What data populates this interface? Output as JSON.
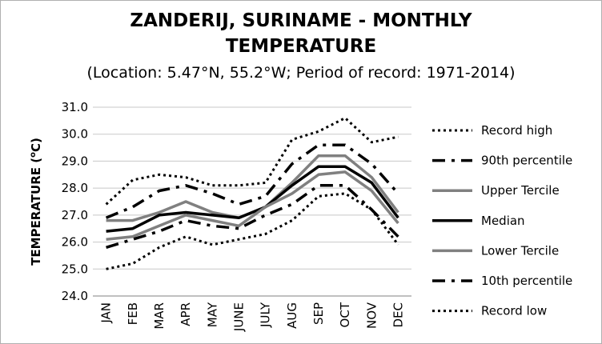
{
  "chart_data": {
    "type": "line",
    "title_line1": "ZANDERIJ, SURINAME - MONTHLY",
    "title_line2": "TEMPERATURE",
    "subtitle": "(Location: 5.47°N, 55.2°W; Period of record: 1971-2014)",
    "ylabel_main": "TEMPERATURE (",
    "ylabel_sup": "o",
    "ylabel_end": "C)",
    "ylim": [
      24.0,
      31.0
    ],
    "yticks": [
      "24.0",
      "25.0",
      "26.0",
      "27.0",
      "28.0",
      "29.0",
      "30.0",
      "31.0"
    ],
    "categories": [
      "JAN",
      "FEB",
      "MAR",
      "APR",
      "MAY",
      "JUNE",
      "JULY",
      "AUG",
      "SEP",
      "OCT",
      "NOV",
      "DEC"
    ],
    "grid": "horizontal",
    "legend_position": "right",
    "series": [
      {
        "name": "Record high",
        "style": "dotted",
        "color": "#000000",
        "values": [
          27.4,
          28.3,
          28.5,
          28.4,
          28.1,
          28.1,
          28.2,
          29.8,
          30.1,
          30.6,
          29.7,
          29.9
        ]
      },
      {
        "name": "90th percentile",
        "style": "dashdot",
        "color": "#000000",
        "values": [
          26.9,
          27.3,
          27.9,
          28.1,
          27.8,
          27.4,
          27.7,
          28.9,
          29.6,
          29.6,
          28.9,
          27.8
        ]
      },
      {
        "name": "Upper Tercile",
        "style": "solid",
        "color": "#808080",
        "values": [
          26.8,
          26.8,
          27.1,
          27.5,
          27.1,
          26.9,
          27.3,
          28.2,
          29.2,
          29.2,
          28.4,
          27.1
        ]
      },
      {
        "name": "Median",
        "style": "solid",
        "color": "#000000",
        "values": [
          26.4,
          26.5,
          27.0,
          27.1,
          27.0,
          26.9,
          27.3,
          28.1,
          28.8,
          28.8,
          28.2,
          26.9
        ]
      },
      {
        "name": "Lower Tercile",
        "style": "solid",
        "color": "#808080",
        "values": [
          26.1,
          26.2,
          26.6,
          27.0,
          26.8,
          26.6,
          27.3,
          27.8,
          28.5,
          28.6,
          27.9,
          26.7
        ]
      },
      {
        "name": "10th percentile",
        "style": "dashdot",
        "color": "#000000",
        "values": [
          25.8,
          26.1,
          26.4,
          26.8,
          26.6,
          26.5,
          27.0,
          27.4,
          28.1,
          28.1,
          27.2,
          26.2
        ]
      },
      {
        "name": "Record low",
        "style": "dotted",
        "color": "#000000",
        "values": [
          25.0,
          25.2,
          25.8,
          26.2,
          25.9,
          26.1,
          26.3,
          26.8,
          27.7,
          27.8,
          27.2,
          25.9
        ]
      }
    ]
  }
}
